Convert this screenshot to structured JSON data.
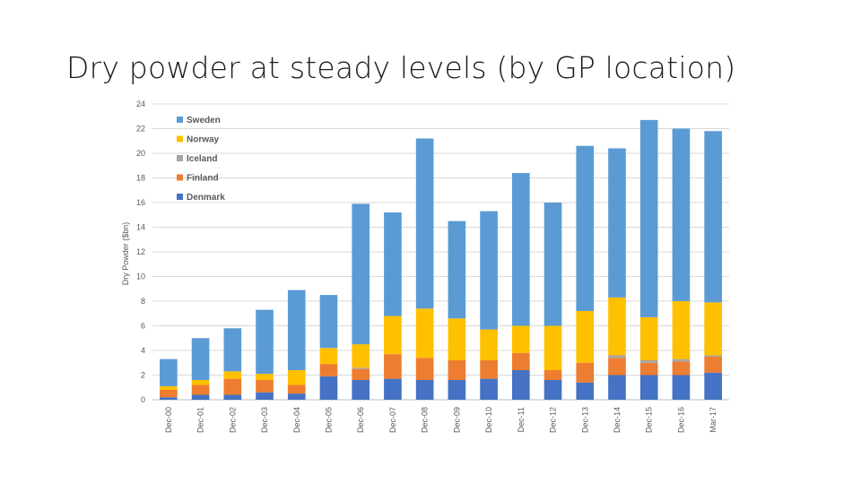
{
  "slide": {
    "title": "Dry powder at steady levels (by GP location)"
  },
  "chart_data": {
    "type": "bar",
    "stacked": true,
    "ylabel": "Dry Powder ($bn)",
    "ylim": [
      0,
      24
    ],
    "yticks": [
      0,
      2,
      4,
      6,
      8,
      10,
      12,
      14,
      16,
      18,
      20,
      22,
      24
    ],
    "grid": true,
    "legend_position": "top-left",
    "categories": [
      "Dec-00",
      "Dec-01",
      "Dec-02",
      "Dec-03",
      "Dec-04",
      "Dec-05",
      "Dec-06",
      "Dec-07",
      "Dec-08",
      "Dec-09",
      "Dec-10",
      "Dec-11",
      "Dec-12",
      "Dec-13",
      "Dec-14",
      "Dec-15",
      "Dec-16",
      "Mar-17"
    ],
    "series": [
      {
        "name": "Denmark",
        "color": "#4472C4",
        "values": [
          0.2,
          0.4,
          0.4,
          0.6,
          0.5,
          1.9,
          1.6,
          1.7,
          1.6,
          1.6,
          1.7,
          2.4,
          1.6,
          1.4,
          2.0,
          2.0,
          2.0,
          2.2
        ]
      },
      {
        "name": "Finland",
        "color": "#ED7D31",
        "values": [
          0.6,
          0.8,
          1.3,
          1.0,
          0.7,
          1.0,
          0.9,
          2.0,
          1.8,
          1.6,
          1.5,
          1.4,
          0.8,
          1.6,
          1.4,
          1.0,
          1.1,
          1.3
        ]
      },
      {
        "name": "Iceland",
        "color": "#A5A5A5",
        "values": [
          0.0,
          0.0,
          0.0,
          0.0,
          0.0,
          0.0,
          0.1,
          0.0,
          0.0,
          0.0,
          0.0,
          0.0,
          0.0,
          0.0,
          0.2,
          0.2,
          0.2,
          0.1
        ]
      },
      {
        "name": "Norway",
        "color": "#FFC000",
        "values": [
          0.3,
          0.4,
          0.6,
          0.5,
          1.2,
          1.3,
          1.9,
          3.1,
          4.0,
          3.4,
          2.5,
          2.2,
          3.6,
          4.2,
          4.7,
          3.5,
          4.7,
          4.3
        ]
      },
      {
        "name": "Sweden",
        "color": "#5B9BD5",
        "values": [
          2.2,
          3.4,
          3.5,
          5.2,
          6.5,
          4.3,
          11.4,
          8.4,
          13.8,
          7.9,
          9.6,
          12.4,
          10.0,
          13.4,
          12.1,
          16.0,
          14.0,
          13.9
        ]
      }
    ]
  }
}
